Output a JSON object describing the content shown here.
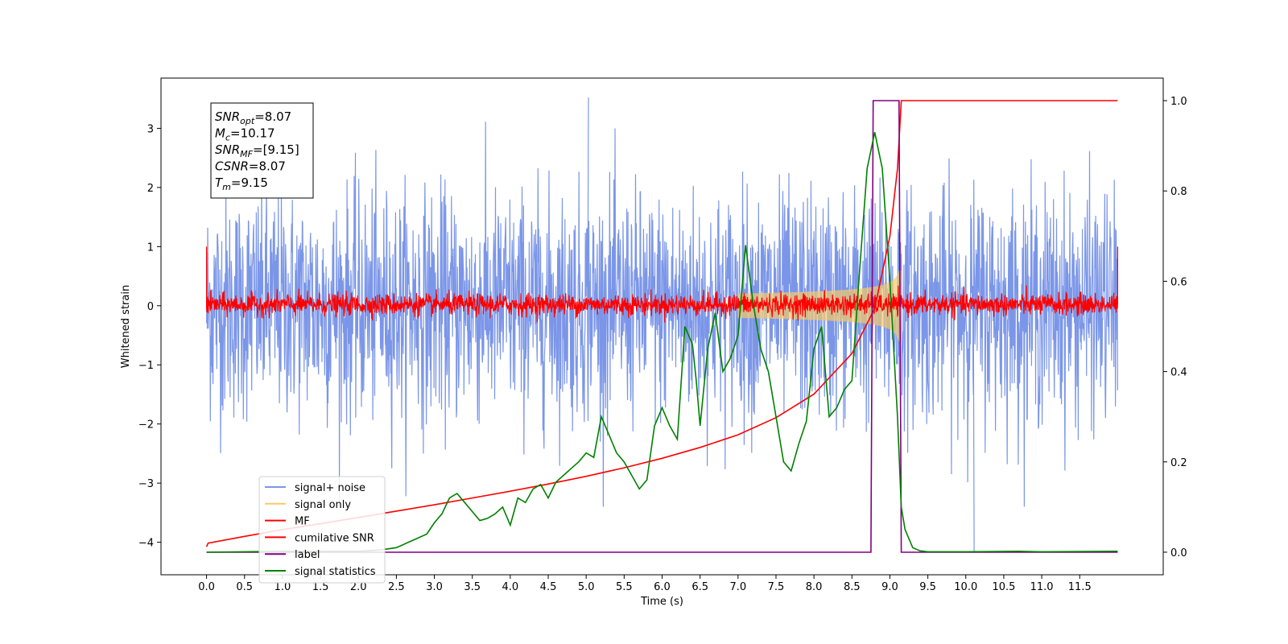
{
  "chart_data": {
    "type": "line",
    "title": "",
    "xlabel": "Time (s)",
    "ylabel": "Whitened strain",
    "y2label": "",
    "xlim": [
      -0.6,
      12.6
    ],
    "ylim": [
      -4.55,
      3.85
    ],
    "y2lim": [
      -0.05,
      1.05
    ],
    "xticks": [
      "0.0",
      "0.5",
      "1.0",
      "1.5",
      "2.0",
      "2.5",
      "3.0",
      "3.5",
      "4.0",
      "4.5",
      "5.0",
      "5.5",
      "6.0",
      "6.5",
      "7.0",
      "7.5",
      "8.0",
      "8.5",
      "9.0",
      "9.5",
      "10.0",
      "10.5",
      "11.0",
      "11.5"
    ],
    "yticks": [
      "3",
      "2",
      "1",
      "0",
      "−1",
      "−2",
      "−3",
      "−4"
    ],
    "y2ticks": [
      "1.0",
      "0.8",
      "0.6",
      "0.4",
      "0.2",
      "0.0"
    ],
    "grid": false,
    "legend_position": "lower-left",
    "stats_box": [
      {
        "sym": "SNR",
        "sub": "opt",
        "value": "=8.07"
      },
      {
        "sym": "M",
        "sub": "c",
        "value": "=10.17"
      },
      {
        "sym": "SNR",
        "sub": "MF",
        "value": "=[9.15]"
      },
      {
        "sym": "CSNR",
        "sub": "",
        "value": "=8.07"
      },
      {
        "sym": "T",
        "sub": "m",
        "value": "=9.15"
      }
    ],
    "series": [
      {
        "name": "signal+ noise",
        "color": "#7b96e8",
        "axis": "left",
        "style": "noise",
        "x_range": [
          0.0,
          12.0
        ],
        "amplitude_rms": 1.0,
        "extremes": [
          3.52,
          -3.4,
          -4.15
        ]
      },
      {
        "name": "signal only",
        "color": "#f5c96b",
        "axis": "left",
        "style": "chirp",
        "merger_time": 9.15,
        "peak_amplitude": 0.6,
        "start_time": 7.0
      },
      {
        "name": "MF",
        "color": "#ff0000",
        "axis": "left",
        "style": "noise",
        "x_range": [
          0.0,
          12.0
        ],
        "amplitude_rms": 0.09,
        "edge_value": 1.0
      },
      {
        "name": "cumilative SNR",
        "color": "#ff0000",
        "axis": "right",
        "x": [
          0.0,
          0.02,
          0.5,
          1.0,
          1.5,
          2.0,
          2.5,
          3.0,
          3.5,
          4.0,
          4.5,
          5.0,
          5.5,
          6.0,
          6.5,
          7.0,
          7.5,
          8.0,
          8.5,
          8.8,
          9.0,
          9.1,
          9.15,
          12.0
        ],
        "y": [
          0.012,
          0.02,
          0.035,
          0.05,
          0.063,
          0.077,
          0.091,
          0.105,
          0.12,
          0.135,
          0.151,
          0.168,
          0.187,
          0.208,
          0.232,
          0.26,
          0.298,
          0.35,
          0.44,
          0.54,
          0.7,
          0.85,
          1.0,
          1.0
        ]
      },
      {
        "name": "label",
        "color": "#800080",
        "axis": "right",
        "x": [
          0.0,
          8.75,
          8.78,
          9.12,
          9.15,
          12.0
        ],
        "y": [
          0.0,
          0.0,
          1.0,
          1.0,
          0.0,
          0.0
        ]
      },
      {
        "name": "signal statistics",
        "color": "#008000",
        "axis": "right",
        "x": [
          0.0,
          1.0,
          2.0,
          2.3,
          2.5,
          2.7,
          2.9,
          3.0,
          3.1,
          3.2,
          3.3,
          3.4,
          3.5,
          3.6,
          3.7,
          3.8,
          3.9,
          4.0,
          4.1,
          4.2,
          4.3,
          4.4,
          4.5,
          4.6,
          4.7,
          4.8,
          4.9,
          5.0,
          5.1,
          5.2,
          5.3,
          5.4,
          5.5,
          5.6,
          5.7,
          5.8,
          5.9,
          6.0,
          6.1,
          6.2,
          6.3,
          6.4,
          6.45,
          6.5,
          6.6,
          6.7,
          6.8,
          6.9,
          7.0,
          7.1,
          7.2,
          7.3,
          7.4,
          7.5,
          7.6,
          7.7,
          7.8,
          7.9,
          8.0,
          8.1,
          8.2,
          8.3,
          8.4,
          8.5,
          8.6,
          8.7,
          8.8,
          8.9,
          9.0,
          9.1,
          9.15,
          9.2,
          9.3,
          9.4,
          9.5,
          9.7,
          10.0,
          10.7,
          11.0,
          12.0
        ],
        "y": [
          0.0,
          0.002,
          0.002,
          0.005,
          0.01,
          0.025,
          0.04,
          0.065,
          0.085,
          0.12,
          0.13,
          0.11,
          0.09,
          0.07,
          0.075,
          0.085,
          0.1,
          0.06,
          0.12,
          0.11,
          0.14,
          0.15,
          0.12,
          0.155,
          0.17,
          0.185,
          0.2,
          0.22,
          0.21,
          0.3,
          0.26,
          0.22,
          0.2,
          0.17,
          0.14,
          0.16,
          0.28,
          0.32,
          0.28,
          0.25,
          0.5,
          0.46,
          0.38,
          0.28,
          0.45,
          0.53,
          0.4,
          0.43,
          0.48,
          0.68,
          0.55,
          0.45,
          0.4,
          0.3,
          0.2,
          0.18,
          0.24,
          0.29,
          0.45,
          0.5,
          0.3,
          0.32,
          0.36,
          0.38,
          0.62,
          0.85,
          0.93,
          0.85,
          0.6,
          0.3,
          0.1,
          0.05,
          0.01,
          0.003,
          0.001,
          0.001,
          0.001,
          0.002,
          0.001,
          0.002
        ]
      }
    ]
  }
}
